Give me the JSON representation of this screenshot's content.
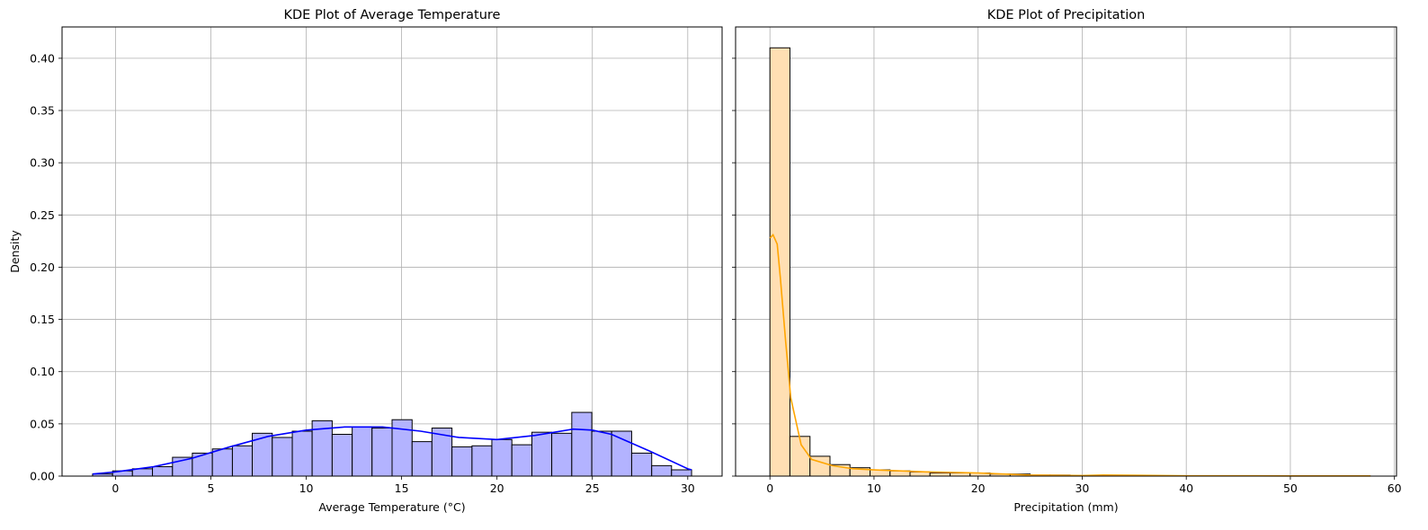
{
  "chart_data": [
    {
      "type": "histogram",
      "title": "KDE Plot of Average Temperature",
      "xlabel": "Average Temperature (°C)",
      "ylabel": "Density",
      "bins": [
        -1.2,
        -0.15,
        0.89,
        1.94,
        2.99,
        4.03,
        5.08,
        6.13,
        7.17,
        8.22,
        9.27,
        10.31,
        11.36,
        12.41,
        13.45,
        14.5,
        15.55,
        16.59,
        17.64,
        18.69,
        19.73,
        20.78,
        21.83,
        22.87,
        23.92,
        24.97,
        26.01,
        27.06,
        28.11,
        29.15,
        30.2
      ],
      "values": [
        0.002,
        0.005,
        0.007,
        0.009,
        0.018,
        0.022,
        0.026,
        0.029,
        0.041,
        0.037,
        0.043,
        0.053,
        0.04,
        0.047,
        0.046,
        0.054,
        0.033,
        0.046,
        0.028,
        0.029,
        0.035,
        0.03,
        0.042,
        0.041,
        0.061,
        0.043,
        0.043,
        0.022,
        0.01,
        0.006
      ],
      "color": "#b3b3ff",
      "kde": {
        "x": [
          -1.2,
          0,
          2,
          4,
          6,
          8,
          10,
          12,
          13,
          14,
          16,
          18,
          20,
          22,
          24,
          25,
          26,
          28,
          30,
          30.2
        ],
        "values": [
          0.002,
          0.004,
          0.009,
          0.017,
          0.028,
          0.038,
          0.044,
          0.047,
          0.047,
          0.047,
          0.043,
          0.037,
          0.035,
          0.039,
          0.045,
          0.044,
          0.04,
          0.024,
          0.007,
          0.006
        ],
        "color": "#0000ff"
      },
      "xlim": [
        -2.8,
        31.8
      ],
      "xticks": [
        0,
        5,
        10,
        15,
        20,
        25,
        30
      ],
      "ylim": [
        0,
        0.43
      ],
      "yticks": [
        {
          "value": 0,
          "label": "0.00"
        },
        {
          "value": 0.05,
          "label": "0.05"
        },
        {
          "value": 0.1,
          "label": "0.10"
        },
        {
          "value": 0.15,
          "label": "0.15"
        },
        {
          "value": 0.2,
          "label": "0.20"
        },
        {
          "value": 0.25,
          "label": "0.25"
        },
        {
          "value": 0.3,
          "label": "0.30"
        },
        {
          "value": 0.35,
          "label": "0.35"
        },
        {
          "value": 0.4,
          "label": "0.40"
        }
      ],
      "grid": true
    },
    {
      "type": "histogram",
      "title": "KDE Plot of Precipitation",
      "xlabel": "Precipitation (mm)",
      "bins": [
        0,
        1.92,
        3.85,
        5.77,
        7.69,
        9.62,
        11.54,
        13.46,
        15.38,
        17.31,
        19.23,
        21.15,
        23.08,
        25.0,
        26.92,
        28.85,
        30.77,
        32.69,
        34.62,
        36.54,
        38.46,
        40.38,
        42.31,
        44.23,
        46.15,
        48.08,
        50.0,
        51.92,
        53.85,
        55.77,
        57.69
      ],
      "values": [
        0.41,
        0.038,
        0.019,
        0.011,
        0.008,
        0.006,
        0.005,
        0.004,
        0.003,
        0.003,
        0.003,
        0.002,
        0.002,
        0.001,
        0.001,
        0.0005,
        0.0005,
        0.0003,
        0.0003,
        0.0002,
        0.0001,
        0.0001,
        0,
        0,
        0,
        0,
        0,
        0,
        0,
        0.0001
      ],
      "color": "#ffdfb3",
      "kde": {
        "x": [
          0,
          0.3,
          0.7,
          1,
          1.5,
          2,
          3,
          4,
          6,
          8,
          10,
          15,
          20,
          25,
          30,
          32,
          40,
          50,
          57.7
        ],
        "values": [
          0.228,
          0.231,
          0.222,
          0.19,
          0.13,
          0.075,
          0.03,
          0.016,
          0.01,
          0.007,
          0.006,
          0.004,
          0.003,
          0.001,
          0.0005,
          0.001,
          0.0003,
          0.0002,
          0.0002
        ],
        "color": "#ffa500"
      },
      "xlim": [
        -3.3,
        60.2
      ],
      "xticks": [
        0,
        10,
        20,
        30,
        40,
        50,
        60
      ],
      "grid": true
    }
  ]
}
